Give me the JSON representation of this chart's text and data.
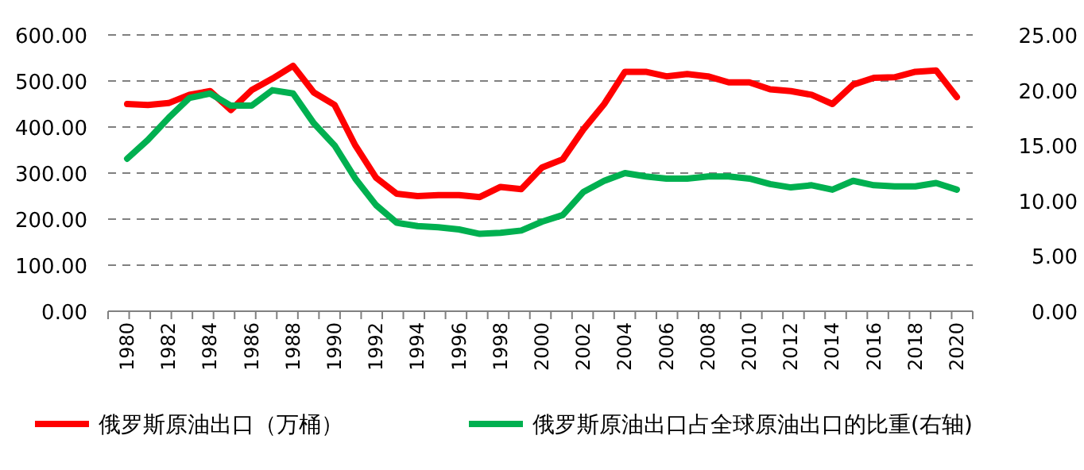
{
  "chart_data": {
    "type": "line",
    "categories": [
      "1980",
      null,
      "1982",
      null,
      "1984",
      null,
      "1986",
      null,
      "1988",
      null,
      "1990",
      null,
      "1992",
      null,
      "1994",
      null,
      "1996",
      null,
      "1998",
      null,
      "2000",
      null,
      "2002",
      null,
      "2004",
      null,
      "2006",
      null,
      "2008",
      null,
      "2010",
      null,
      "2012",
      null,
      "2014",
      null,
      "2016",
      null,
      "2018",
      null,
      "2020"
    ],
    "series": [
      {
        "name": "俄罗斯原油出口（万桶）",
        "color": "#ff0000",
        "values": [
          450,
          448,
          452,
          470,
          478,
          437,
          480,
          505,
          533,
          475,
          448,
          360,
          290,
          255,
          250,
          252,
          252,
          248,
          270,
          265,
          312,
          330,
          395,
          450,
          520,
          520,
          510,
          515,
          510,
          497,
          497,
          482,
          478,
          470,
          450,
          492,
          507,
          508,
          520,
          523,
          465
        ]
      },
      {
        "name": "俄罗斯原油出口占全球原油出口的比重(右轴)",
        "color": "#00b050",
        "axis": "y2",
        "values": [
          13.8,
          15.5,
          17.5,
          19.3,
          19.7,
          18.6,
          18.6,
          20.0,
          19.7,
          17.0,
          15.0,
          12.0,
          9.6,
          8.0,
          7.7,
          7.6,
          7.4,
          7.0,
          7.1,
          7.3,
          8.1,
          8.7,
          10.8,
          11.8,
          12.5,
          12.2,
          12.0,
          12.0,
          12.2,
          12.2,
          12.0,
          11.5,
          11.2,
          11.4,
          11.0,
          11.8,
          11.4,
          11.3,
          11.3,
          11.6,
          11.0
        ]
      }
    ],
    "ylim": [
      0,
      600
    ],
    "yticks": [
      {
        "value": 0,
        "label": "0.00"
      },
      {
        "value": 100,
        "label": "100.00"
      },
      {
        "value": 200,
        "label": "200.00"
      },
      {
        "value": 300,
        "label": "300.00"
      },
      {
        "value": 400,
        "label": "400.00"
      },
      {
        "value": 500,
        "label": "500.00"
      },
      {
        "value": 600,
        "label": "600.00"
      }
    ],
    "y2lim": [
      0,
      25
    ],
    "y2ticks": [
      {
        "value": 0,
        "label": "0.00"
      },
      {
        "value": 5,
        "label": "5.00"
      },
      {
        "value": 10,
        "label": "10.00"
      },
      {
        "value": 15,
        "label": "15.00"
      },
      {
        "value": 20,
        "label": "20.00"
      },
      {
        "value": 25,
        "label": "25.00"
      }
    ],
    "grid": "y",
    "legend": "bottom",
    "line_style": "solid",
    "marker": "none"
  }
}
